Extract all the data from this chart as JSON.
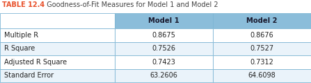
{
  "title_bold": "TABLE 12.4",
  "title_bold_color": "#E8502A",
  "title_rest": "  Goodness-of-Fit Measures for Model 1 and Model 2",
  "title_rest_color": "#444444",
  "col_headers": [
    "",
    "Model 1",
    "Model 2"
  ],
  "col_header_bg": "#8BBDDA",
  "col_header_text_color": "#1a1a2e",
  "row_labels": [
    "Multiple R",
    "R Square",
    "Adjusted R Square",
    "Standard Error"
  ],
  "model1_values": [
    "0.8675",
    "0.7526",
    "0.7423",
    "63.2606"
  ],
  "model2_values": [
    "0.8676",
    "0.7527",
    "0.7312",
    "64.6098"
  ],
  "row_bg_even": "#FFFFFF",
  "row_bg_odd": "#EAF3FA",
  "border_color": "#7EB6D4",
  "label_text_color": "#222222",
  "value_text_color": "#222222",
  "figsize": [
    4.47,
    1.2
  ],
  "dpi": 100
}
